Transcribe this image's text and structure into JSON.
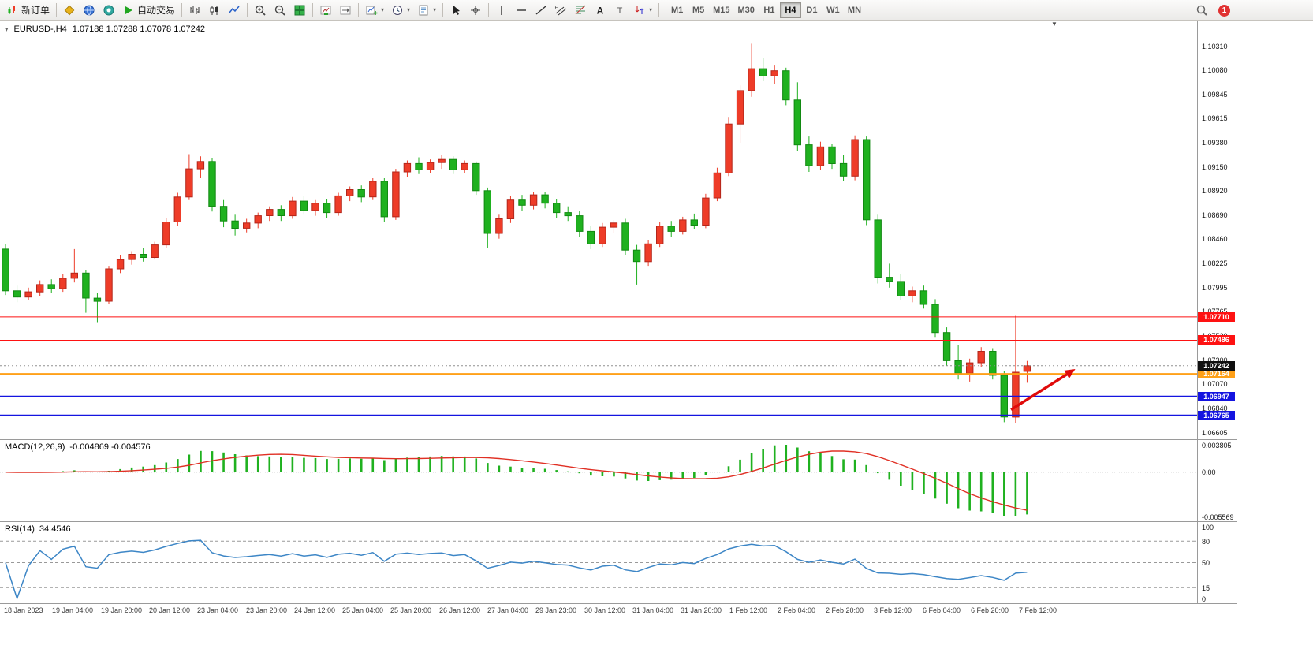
{
  "toolbar": {
    "items": [
      {
        "name": "new-order",
        "icon": "new-order-icon",
        "label": "新订单"
      },
      {
        "name": "separator"
      },
      {
        "name": "symbols",
        "icon": "gold-diamond-icon"
      },
      {
        "name": "market-watch",
        "icon": "blue-globe-icon"
      },
      {
        "name": "data-window",
        "icon": "teal-target-icon"
      },
      {
        "name": "autotrading",
        "icon": "green-play-icon",
        "label": "自动交易"
      },
      {
        "name": "separator"
      },
      {
        "name": "chart-bars",
        "icon": "bar-chart-icon"
      },
      {
        "name": "chart-candles",
        "icon": "candlestick-icon"
      },
      {
        "name": "chart-line",
        "icon": "line-chart-icon"
      },
      {
        "name": "separator"
      },
      {
        "name": "zoom-in",
        "icon": "zoom-in-icon"
      },
      {
        "name": "zoom-out",
        "icon": "zoom-out-icon"
      },
      {
        "name": "tile-windows",
        "icon": "tile-windows-icon"
      },
      {
        "name": "separator"
      },
      {
        "name": "auto-scroll",
        "icon": "auto-scroll-icon"
      },
      {
        "name": "chart-shift",
        "icon": "chart-shift-icon"
      },
      {
        "name": "separator"
      },
      {
        "name": "new-chart",
        "icon": "new-chart-icon",
        "dropdown": true
      },
      {
        "name": "profiles",
        "icon": "clock-icon",
        "dropdown": true
      },
      {
        "name": "templates",
        "icon": "template-icon",
        "dropdown": true
      },
      {
        "name": "separator"
      },
      {
        "name": "cursor",
        "icon": "cursor-icon"
      },
      {
        "name": "crosshair",
        "icon": "crosshair-icon"
      },
      {
        "name": "separator"
      },
      {
        "name": "vertical-line",
        "icon": "vertical-line-icon"
      },
      {
        "name": "horizontal-line",
        "icon": "horizontal-line-icon"
      },
      {
        "name": "trendline",
        "icon": "trendline-icon"
      },
      {
        "name": "equidistant-channel",
        "icon": "channel-icon"
      },
      {
        "name": "fibonacci",
        "icon": "fibonacci-icon"
      },
      {
        "name": "text",
        "icon": "text-a-icon"
      },
      {
        "name": "text-label",
        "icon": "text-t-icon"
      },
      {
        "name": "arrows",
        "icon": "arrows-icon",
        "dropdown": true
      },
      {
        "name": "separator"
      }
    ],
    "timeframes": [
      "M1",
      "M5",
      "M15",
      "M30",
      "H1",
      "H4",
      "D1",
      "W1",
      "MN"
    ],
    "active_timeframe": "H4",
    "notification_count": "1"
  },
  "chart_data": {
    "type": "candlestick",
    "symbol_title": "EURUSD-,H4",
    "ohlc_title": "1.07188 1.07288 1.07078 1.07242",
    "price_axis": {
      "top": 1.1031,
      "bottom": 1.06605,
      "labels": [
        "1.10310",
        "1.10080",
        "1.09845",
        "1.09615",
        "1.09380",
        "1.09150",
        "1.08920",
        "1.08690",
        "1.08460",
        "1.08225",
        "1.07995",
        "1.07765",
        "1.07530",
        "1.07300",
        "1.07070",
        "1.06840",
        "1.06605"
      ]
    },
    "colors": {
      "bull": "#ee3c28",
      "bull_border": "#b3261a",
      "bear": "#1fb11f",
      "bear_border": "#128912",
      "macd_signal": "#e03024",
      "rsi_line": "#3d86c6"
    },
    "hlines": [
      {
        "price": 1.0771,
        "tag": "1.07710",
        "color": "#fe1212",
        "width": 1
      },
      {
        "price": 1.07486,
        "tag": "1.07486",
        "color": "#fe1212",
        "width": 1
      },
      {
        "price": 1.07164,
        "tag": "1.07164",
        "color": "#ffa018",
        "width": 2
      },
      {
        "price": 1.06947,
        "tag": "1.06947",
        "color": "#1414e0",
        "width": 2
      },
      {
        "price": 1.06765,
        "tag": "1.06765",
        "color": "#1414e0",
        "width": 2
      }
    ],
    "current_price": {
      "price": 1.07242,
      "tag": "1.07242",
      "tag_color": "#101010"
    },
    "candles": [
      [
        1.0836,
        1.0841,
        1.0792,
        1.0796
      ],
      [
        1.0796,
        1.0801,
        1.0785,
        1.079
      ],
      [
        1.079,
        1.0799,
        1.0787,
        1.0795
      ],
      [
        1.0795,
        1.0806,
        1.0791,
        1.0802
      ],
      [
        1.0802,
        1.0807,
        1.0794,
        1.0798
      ],
      [
        1.0798,
        1.0812,
        1.0795,
        1.0808
      ],
      [
        1.0808,
        1.0836,
        1.0804,
        1.0813
      ],
      [
        1.0813,
        1.0816,
        1.0775,
        1.0789
      ],
      [
        1.0789,
        1.0794,
        1.0766,
        1.0786
      ],
      [
        1.0786,
        1.082,
        1.0783,
        1.0817
      ],
      [
        1.0817,
        1.083,
        1.0813,
        1.0826
      ],
      [
        1.0826,
        1.0834,
        1.0821,
        1.0831
      ],
      [
        1.0831,
        1.0837,
        1.0824,
        1.0828
      ],
      [
        1.0828,
        1.0843,
        1.0826,
        1.084
      ],
      [
        1.084,
        1.0866,
        1.0837,
        1.0862
      ],
      [
        1.0862,
        1.089,
        1.0858,
        1.0886
      ],
      [
        1.0886,
        1.0927,
        1.0883,
        1.0913
      ],
      [
        1.0913,
        1.0925,
        1.0904,
        1.092
      ],
      [
        1.092,
        1.0923,
        1.0872,
        1.0877
      ],
      [
        1.0877,
        1.0883,
        1.0857,
        1.0863
      ],
      [
        1.0863,
        1.0869,
        1.0849,
        1.0856
      ],
      [
        1.0856,
        1.0865,
        1.0852,
        1.0861
      ],
      [
        1.0861,
        1.0871,
        1.0856,
        1.0868
      ],
      [
        1.0868,
        1.0877,
        1.0863,
        1.0874
      ],
      [
        1.0874,
        1.0878,
        1.0863,
        1.0868
      ],
      [
        1.0868,
        1.0886,
        1.0865,
        1.0882
      ],
      [
        1.0882,
        1.0887,
        1.0869,
        1.0873
      ],
      [
        1.0873,
        1.0883,
        1.0868,
        1.088
      ],
      [
        1.088,
        1.0884,
        1.0866,
        1.0871
      ],
      [
        1.0871,
        1.089,
        1.0868,
        1.0887
      ],
      [
        1.0887,
        1.0896,
        1.0882,
        1.0893
      ],
      [
        1.0893,
        1.0897,
        1.0881,
        1.0886
      ],
      [
        1.0886,
        1.0904,
        1.0883,
        1.0901
      ],
      [
        1.0901,
        1.0904,
        1.0862,
        1.0867
      ],
      [
        1.0867,
        1.0913,
        1.0864,
        1.091
      ],
      [
        1.091,
        1.0921,
        1.0905,
        1.0918
      ],
      [
        1.0918,
        1.0924,
        1.0908,
        1.0912
      ],
      [
        1.0912,
        1.0922,
        1.0909,
        1.0919
      ],
      [
        1.0919,
        1.0926,
        1.0913,
        1.0922
      ],
      [
        1.0922,
        1.0925,
        1.0908,
        1.0912
      ],
      [
        1.0912,
        1.0921,
        1.0909,
        1.0918
      ],
      [
        1.0918,
        1.092,
        1.0888,
        1.0892
      ],
      [
        1.0892,
        1.0895,
        1.0837,
        1.0851
      ],
      [
        1.0851,
        1.0869,
        1.0846,
        1.0865
      ],
      [
        1.0865,
        1.0887,
        1.0861,
        1.0883
      ],
      [
        1.0883,
        1.0888,
        1.0873,
        1.0878
      ],
      [
        1.0878,
        1.0891,
        1.0874,
        1.0888
      ],
      [
        1.0888,
        1.0891,
        1.0875,
        1.088
      ],
      [
        1.088,
        1.0884,
        1.0866,
        1.0871
      ],
      [
        1.0871,
        1.0877,
        1.0863,
        1.0868
      ],
      [
        1.0868,
        1.0873,
        1.0848,
        1.0853
      ],
      [
        1.0853,
        1.0858,
        1.0836,
        1.0841
      ],
      [
        1.0841,
        1.0861,
        1.0838,
        1.0857
      ],
      [
        1.0857,
        1.0864,
        1.0851,
        1.0861
      ],
      [
        1.0861,
        1.0865,
        1.083,
        1.0835
      ],
      [
        1.0835,
        1.084,
        1.0802,
        1.0824
      ],
      [
        1.0824,
        1.0845,
        1.082,
        1.0841
      ],
      [
        1.0841,
        1.0862,
        1.0838,
        1.0858
      ],
      [
        1.0858,
        1.0863,
        1.0848,
        1.0853
      ],
      [
        1.0853,
        1.0867,
        1.085,
        1.0864
      ],
      [
        1.0864,
        1.087,
        1.0855,
        1.0859
      ],
      [
        1.0859,
        1.0889,
        1.0856,
        1.0885
      ],
      [
        1.0885,
        1.0914,
        1.0882,
        1.0909
      ],
      [
        1.0909,
        1.0962,
        1.0906,
        1.0956
      ],
      [
        1.0956,
        1.0993,
        1.0938,
        1.0988
      ],
      [
        1.0988,
        1.1033,
        1.0982,
        1.1009
      ],
      [
        1.1009,
        1.1019,
        1.0997,
        1.1002
      ],
      [
        1.1002,
        1.1012,
        1.0994,
        1.1007
      ],
      [
        1.1007,
        1.101,
        1.0974,
        1.0979
      ],
      [
        1.0979,
        1.0996,
        1.093,
        1.0936
      ],
      [
        1.0936,
        1.0944,
        1.091,
        1.0916
      ],
      [
        1.0916,
        1.0939,
        1.0912,
        1.0934
      ],
      [
        1.0934,
        1.0937,
        1.0913,
        1.0918
      ],
      [
        1.0918,
        1.0926,
        1.0901,
        1.0906
      ],
      [
        1.0906,
        1.0945,
        1.0902,
        1.0941
      ],
      [
        1.0941,
        1.0944,
        1.0859,
        1.0864
      ],
      [
        1.0864,
        1.0869,
        1.0803,
        1.0809
      ],
      [
        1.0809,
        1.0822,
        1.0799,
        1.0805
      ],
      [
        1.0805,
        1.0812,
        1.0787,
        1.0791
      ],
      [
        1.0791,
        1.08,
        1.0785,
        1.0796
      ],
      [
        1.0796,
        1.0801,
        1.0779,
        1.0783
      ],
      [
        1.0783,
        1.0788,
        1.0751,
        1.0756
      ],
      [
        1.0756,
        1.0761,
        1.0724,
        1.0729
      ],
      [
        1.0729,
        1.0744,
        1.0711,
        1.0717
      ],
      [
        1.0717,
        1.0731,
        1.0709,
        1.0727
      ],
      [
        1.0727,
        1.0742,
        1.0723,
        1.0738
      ],
      [
        1.0738,
        1.0741,
        1.0711,
        1.0715
      ],
      [
        1.0715,
        1.0719,
        1.067,
        1.0675
      ],
      [
        1.0675,
        1.0772,
        1.0669,
        1.0718
      ],
      [
        1.07188,
        1.07288,
        1.07078,
        1.07242
      ]
    ],
    "indicators": {
      "macd": {
        "label": "MACD(12,26,9)",
        "values": "-0.004869 -0.004576",
        "fast": 12,
        "slow": 26,
        "signal": 9,
        "axis_labels": {
          "max": "0.003805",
          "zero": "0.00",
          "min": "-0.005569"
        }
      },
      "rsi": {
        "label": "RSI(14)",
        "value": "34.4546",
        "period": 14,
        "levels": [
          80,
          50,
          15
        ],
        "axis_values": [
          100,
          80,
          50,
          15,
          0
        ],
        "axis_labels": [
          "100",
          "80",
          "50",
          "15",
          "0"
        ]
      }
    },
    "time_axis": [
      "18 Jan 2023",
      "19 Jan 04:00",
      "19 Jan 20:00",
      "20 Jan 12:00",
      "23 Jan 04:00",
      "23 Jan 20:00",
      "24 Jan 12:00",
      "25 Jan 04:00",
      "25 Jan 20:00",
      "26 Jan 12:00",
      "27 Jan 04:00",
      "29 Jan 23:00",
      "30 Jan 12:00",
      "31 Jan 04:00",
      "31 Jan 20:00",
      "1 Feb 12:00",
      "2 Feb 04:00",
      "2 Feb 20:00",
      "3 Feb 12:00",
      "6 Feb 04:00",
      "6 Feb 20:00",
      "7 Feb 12:00"
    ],
    "annotation": {
      "type": "arrow",
      "color": "#e00a0a",
      "from": {
        "index": 87.6,
        "price": 1.0682
      },
      "to": {
        "index": 93.2,
        "price": 1.0721
      }
    }
  }
}
